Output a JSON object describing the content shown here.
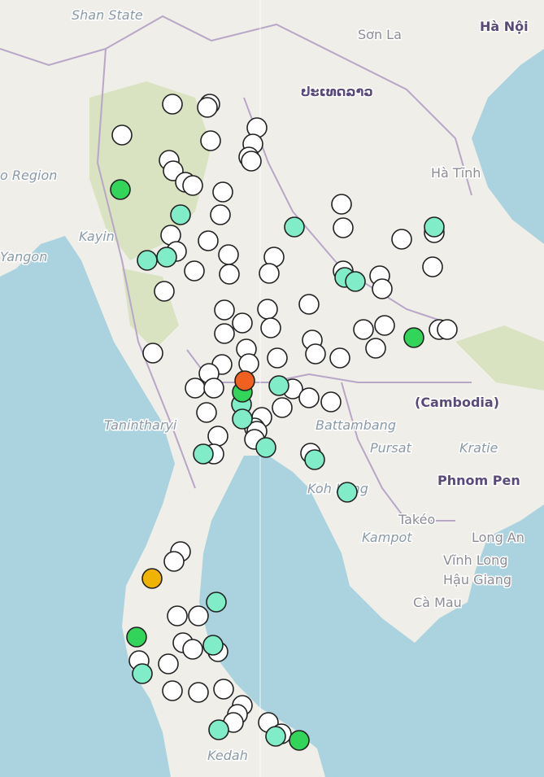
{
  "map": {
    "labels": [
      "Shan State",
      "Sơn La",
      "Hà Nội",
      "ປະເທດລາວ",
      "Hà Tĩnh",
      "o Region",
      "Kayin",
      "Yangon",
      "(Cambodia)",
      "Tanintharyi",
      "Battambang",
      "Pursat",
      "Kratie",
      "Phnom Pen",
      "Koh Kong",
      "Takéo",
      "Kampot",
      "Long An",
      "Vĩnh Long",
      "Hậu Giang",
      "Cà Mau",
      "Kedah"
    ]
  }
}
